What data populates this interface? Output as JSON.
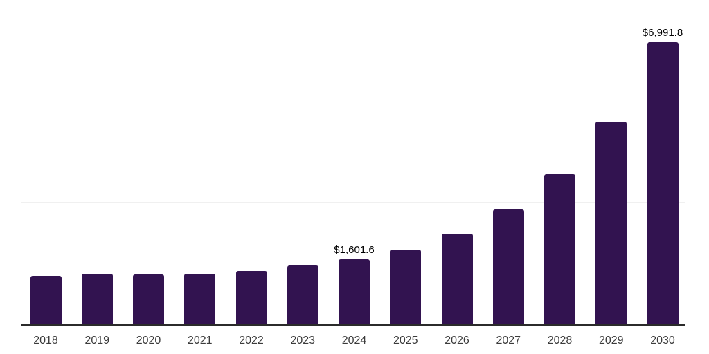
{
  "chart_data": {
    "type": "bar",
    "categories": [
      "2018",
      "2019",
      "2020",
      "2021",
      "2022",
      "2023",
      "2024",
      "2025",
      "2026",
      "2027",
      "2028",
      "2029",
      "2030"
    ],
    "values": [
      1185,
      1230,
      1220,
      1240,
      1310,
      1435,
      1601.6,
      1840,
      2225,
      2825,
      3700,
      5020,
      6991.8
    ],
    "title": "",
    "xlabel": "",
    "ylabel": "",
    "ylim": [
      0,
      8000
    ],
    "gridline_step": 1000,
    "grid": "horizontal-only",
    "legend": "none",
    "y_axis_labels_visible": false,
    "annotations": [
      {
        "category": "2024",
        "text": "$1,601.6"
      },
      {
        "category": "2030",
        "text": "$6,991.8"
      }
    ],
    "colors": {
      "bar": "#321350",
      "axis": "#2b2b2b",
      "gridline": "#f0f0f0",
      "tick_label": "#3b3b3b",
      "annotation": "#000000",
      "background": "#ffffff"
    }
  }
}
